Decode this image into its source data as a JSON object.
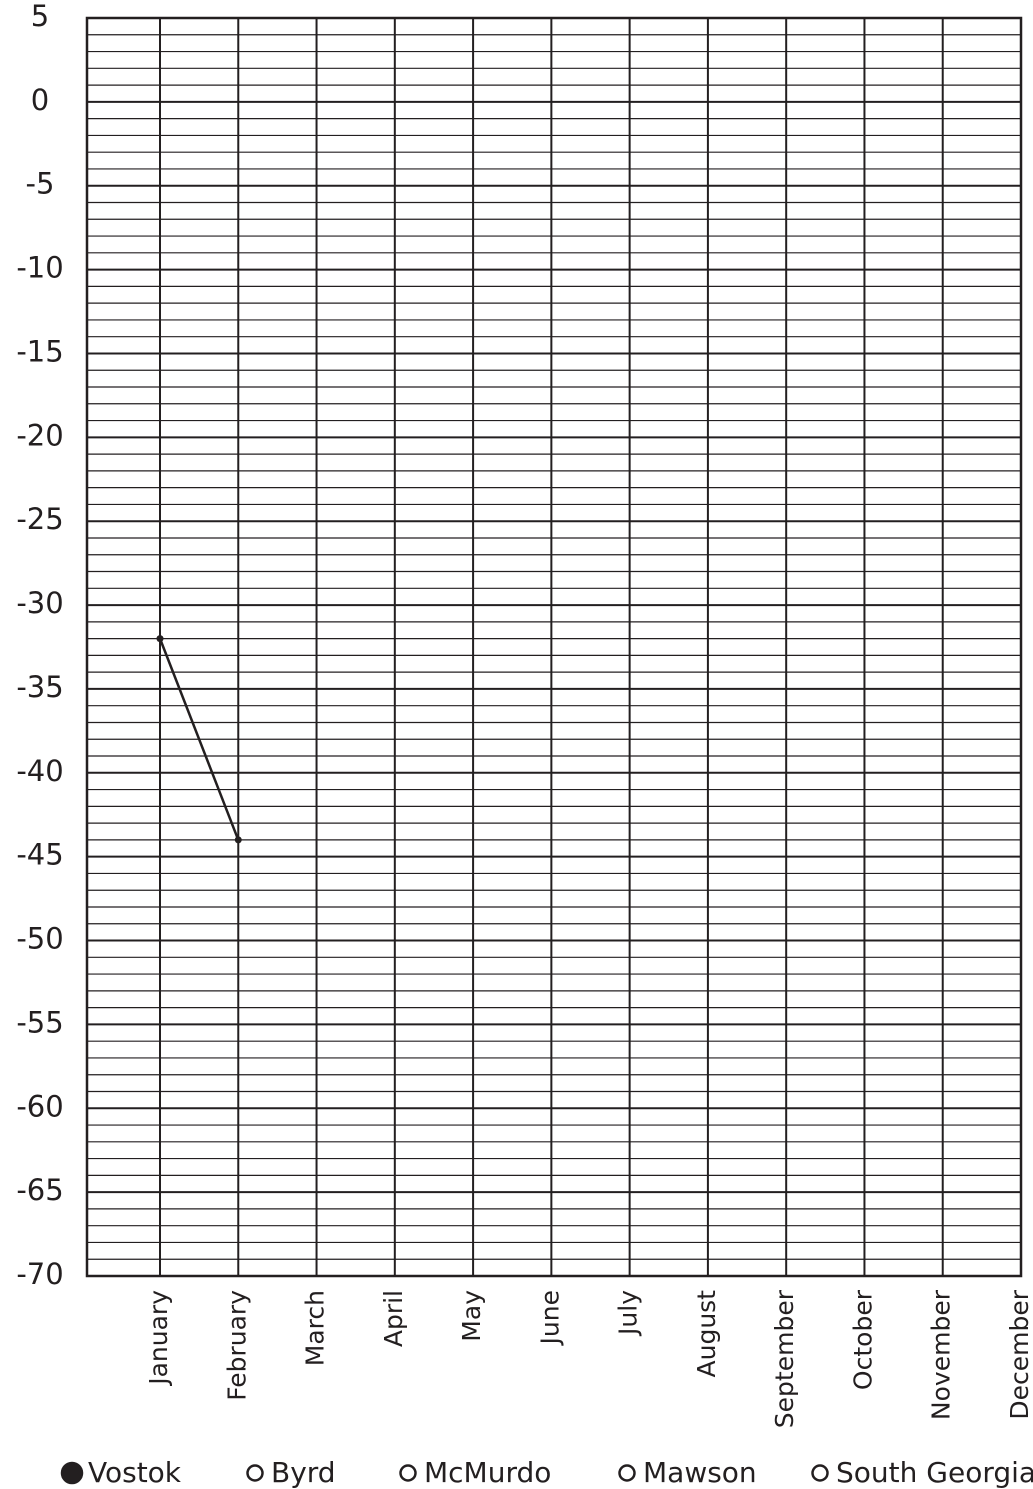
{
  "chart_data": {
    "type": "line",
    "categories": [
      "January",
      "February",
      "March",
      "April",
      "May",
      "June",
      "July",
      "August",
      "September",
      "October",
      "November",
      "December"
    ],
    "series": [
      {
        "name": "Vostok",
        "color": "#231f20",
        "filled": true,
        "values": [
          -32,
          -44,
          null,
          null,
          null,
          null,
          null,
          null,
          null,
          null,
          null,
          null
        ]
      },
      {
        "name": "Byrd",
        "color": "#231f20",
        "filled": false,
        "values": [
          null,
          null,
          null,
          null,
          null,
          null,
          null,
          null,
          null,
          null,
          null,
          null
        ]
      },
      {
        "name": "McMurdo",
        "color": "#231f20",
        "filled": false,
        "values": [
          null,
          null,
          null,
          null,
          null,
          null,
          null,
          null,
          null,
          null,
          null,
          null
        ]
      },
      {
        "name": "Mawson",
        "color": "#231f20",
        "filled": false,
        "values": [
          null,
          null,
          null,
          null,
          null,
          null,
          null,
          null,
          null,
          null,
          null,
          null
        ]
      },
      {
        "name": "South Georgia",
        "color": "#231f20",
        "filled": false,
        "values": [
          null,
          null,
          null,
          null,
          null,
          null,
          null,
          null,
          null,
          null,
          null,
          null
        ]
      }
    ],
    "ylim": [
      -70,
      5
    ],
    "yticks": [
      5,
      0,
      -5,
      -10,
      -15,
      -20,
      -25,
      -30,
      -35,
      -40,
      -45,
      -50,
      -55,
      -60,
      -65,
      -70
    ],
    "yminorticks": [
      4,
      3,
      2,
      1,
      -1,
      -2,
      -3,
      -4,
      -6,
      -7,
      -8,
      -9,
      -11,
      -12,
      -13,
      -14,
      -16,
      -17,
      -18,
      -19,
      -21,
      -22,
      -23,
      -24,
      -26,
      -27,
      -28,
      -29,
      -31,
      -32,
      -33,
      -34,
      -36,
      -37,
      -38,
      -39,
      -41,
      -42,
      -43,
      -44,
      -46,
      -47,
      -48,
      -49,
      -51,
      -52,
      -53,
      -54,
      -56,
      -57,
      -58,
      -59,
      -61,
      -62,
      -63,
      -64,
      -66,
      -67,
      -68,
      -69
    ],
    "grid": true
  }
}
